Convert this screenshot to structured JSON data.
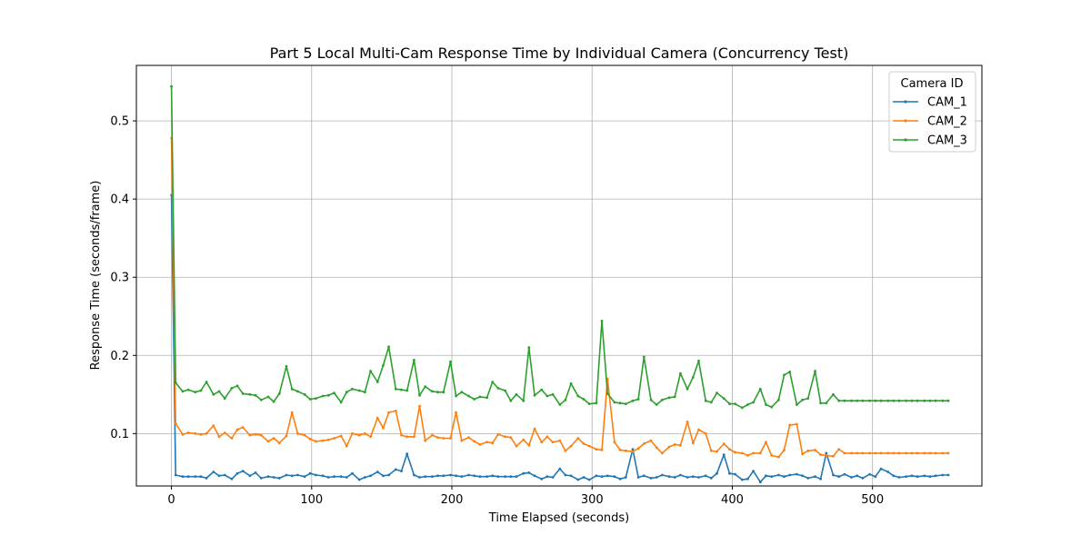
{
  "chart_data": {
    "type": "line",
    "title": "Part 5 Local Multi-Cam Response Time by Individual Camera (Concurrency Test)",
    "xlabel": "Time Elapsed (seconds)",
    "ylabel": "Response Time (seconds/frame)",
    "xlim": [
      -25,
      578
    ],
    "ylim": [
      0.033,
      0.571
    ],
    "xticks": [
      0,
      100,
      200,
      300,
      400,
      500
    ],
    "yticks": [
      0.1,
      0.2,
      0.3,
      0.4,
      0.5
    ],
    "xtick_labels": [
      "0",
      "100",
      "200",
      "300",
      "400",
      "500"
    ],
    "ytick_labels": [
      "0.1",
      "0.2",
      "0.3",
      "0.4",
      "0.5"
    ],
    "grid": true,
    "legend": {
      "title": "Camera ID",
      "position": "top-right"
    },
    "x": [
      0,
      3,
      8,
      12,
      17,
      21,
      25,
      30,
      34,
      38,
      43,
      47,
      51,
      56,
      60,
      64,
      69,
      73,
      77,
      82,
      86,
      90,
      95,
      99,
      103,
      108,
      112,
      116,
      121,
      125,
      129,
      134,
      138,
      142,
      147,
      151,
      155,
      160,
      164,
      168,
      173,
      177,
      181,
      186,
      190,
      194,
      199,
      203,
      207,
      212,
      216,
      220,
      225,
      229,
      233,
      238,
      242,
      246,
      251,
      255,
      259,
      264,
      268,
      272,
      277,
      281,
      285,
      290,
      294,
      298,
      303,
      307,
      311,
      316,
      320,
      324,
      329,
      333,
      337,
      342,
      346,
      350,
      355,
      359,
      363,
      368,
      372,
      376,
      381,
      385,
      389,
      394,
      398,
      402,
      407,
      411,
      415,
      420,
      424,
      428,
      433,
      437,
      441,
      446,
      450,
      454,
      459,
      463,
      467,
      472,
      476,
      480,
      485,
      489,
      493,
      498,
      502,
      506,
      511,
      515,
      519,
      524,
      528,
      532,
      537,
      541,
      545,
      550,
      554
    ],
    "series": [
      {
        "name": "CAM_1",
        "color": "#1f77b4",
        "values": [
          0.405,
          0.047,
          0.045,
          0.045,
          0.045,
          0.045,
          0.043,
          0.051,
          0.046,
          0.047,
          0.042,
          0.049,
          0.052,
          0.046,
          0.05,
          0.043,
          0.045,
          0.044,
          0.043,
          0.047,
          0.046,
          0.047,
          0.045,
          0.049,
          0.047,
          0.046,
          0.044,
          0.045,
          0.045,
          0.044,
          0.049,
          0.041,
          0.044,
          0.046,
          0.051,
          0.046,
          0.047,
          0.054,
          0.052,
          0.074,
          0.047,
          0.044,
          0.045,
          0.045,
          0.046,
          0.046,
          0.047,
          0.046,
          0.045,
          0.047,
          0.046,
          0.045,
          0.045,
          0.046,
          0.045,
          0.045,
          0.045,
          0.045,
          0.049,
          0.05,
          0.046,
          0.042,
          0.045,
          0.044,
          0.055,
          0.047,
          0.046,
          0.041,
          0.044,
          0.041,
          0.046,
          0.045,
          0.046,
          0.045,
          0.042,
          0.044,
          0.08,
          0.044,
          0.046,
          0.043,
          0.044,
          0.047,
          0.045,
          0.044,
          0.047,
          0.044,
          0.045,
          0.044,
          0.046,
          0.043,
          0.049,
          0.073,
          0.049,
          0.048,
          0.041,
          0.042,
          0.052,
          0.038,
          0.046,
          0.045,
          0.047,
          0.045,
          0.047,
          0.048,
          0.046,
          0.043,
          0.045,
          0.042,
          0.075,
          0.047,
          0.045,
          0.048,
          0.044,
          0.046,
          0.043,
          0.048,
          0.045,
          0.055,
          0.051,
          0.046,
          0.044,
          0.045,
          0.046,
          0.045,
          0.046,
          0.045,
          0.046,
          0.047,
          0.047
        ]
      },
      {
        "name": "CAM_2",
        "color": "#ff7f0e",
        "values": [
          0.478,
          0.113,
          0.099,
          0.101,
          0.1,
          0.099,
          0.1,
          0.11,
          0.096,
          0.101,
          0.094,
          0.105,
          0.108,
          0.098,
          0.099,
          0.098,
          0.09,
          0.094,
          0.088,
          0.097,
          0.127,
          0.1,
          0.098,
          0.093,
          0.09,
          0.091,
          0.092,
          0.094,
          0.097,
          0.084,
          0.1,
          0.098,
          0.1,
          0.096,
          0.12,
          0.107,
          0.127,
          0.129,
          0.098,
          0.096,
          0.096,
          0.135,
          0.091,
          0.098,
          0.095,
          0.094,
          0.094,
          0.127,
          0.091,
          0.095,
          0.09,
          0.086,
          0.089,
          0.088,
          0.099,
          0.096,
          0.095,
          0.084,
          0.092,
          0.085,
          0.106,
          0.089,
          0.096,
          0.089,
          0.091,
          0.078,
          0.084,
          0.094,
          0.087,
          0.084,
          0.08,
          0.079,
          0.17,
          0.089,
          0.079,
          0.078,
          0.077,
          0.081,
          0.087,
          0.091,
          0.082,
          0.075,
          0.083,
          0.086,
          0.085,
          0.115,
          0.088,
          0.105,
          0.1,
          0.078,
          0.077,
          0.087,
          0.08,
          0.076,
          0.075,
          0.072,
          0.075,
          0.075,
          0.089,
          0.072,
          0.07,
          0.079,
          0.111,
          0.112,
          0.074,
          0.078,
          0.079,
          0.073,
          0.072,
          0.071,
          0.08,
          0.075,
          0.075,
          0.075,
          0.075,
          0.075,
          0.075,
          0.075,
          0.075,
          0.075,
          0.075,
          0.075,
          0.075,
          0.075,
          0.075,
          0.075,
          0.075,
          0.075,
          0.075
        ]
      },
      {
        "name": "CAM_3",
        "color": "#2ca02c",
        "values": [
          0.544,
          0.165,
          0.154,
          0.156,
          0.153,
          0.155,
          0.166,
          0.15,
          0.154,
          0.145,
          0.158,
          0.161,
          0.151,
          0.15,
          0.149,
          0.143,
          0.147,
          0.141,
          0.151,
          0.186,
          0.157,
          0.154,
          0.15,
          0.144,
          0.145,
          0.148,
          0.149,
          0.152,
          0.14,
          0.153,
          0.157,
          0.155,
          0.153,
          0.18,
          0.166,
          0.187,
          0.211,
          0.157,
          0.156,
          0.155,
          0.194,
          0.149,
          0.16,
          0.154,
          0.153,
          0.153,
          0.192,
          0.148,
          0.153,
          0.148,
          0.144,
          0.147,
          0.146,
          0.166,
          0.158,
          0.155,
          0.142,
          0.15,
          0.142,
          0.21,
          0.149,
          0.156,
          0.148,
          0.15,
          0.137,
          0.143,
          0.164,
          0.148,
          0.144,
          0.138,
          0.139,
          0.244,
          0.151,
          0.14,
          0.139,
          0.138,
          0.142,
          0.144,
          0.198,
          0.143,
          0.137,
          0.143,
          0.146,
          0.147,
          0.177,
          0.157,
          0.172,
          0.193,
          0.142,
          0.14,
          0.152,
          0.145,
          0.138,
          0.138,
          0.133,
          0.137,
          0.14,
          0.157,
          0.137,
          0.134,
          0.143,
          0.175,
          0.179,
          0.137,
          0.143,
          0.145,
          0.18,
          0.139,
          0.139,
          0.15,
          0.142,
          0.142,
          0.142,
          0.142,
          0.142,
          0.142,
          0.142,
          0.142,
          0.142,
          0.142,
          0.142,
          0.142,
          0.142,
          0.142,
          0.142,
          0.142,
          0.142,
          0.142,
          0.142
        ]
      }
    ]
  }
}
